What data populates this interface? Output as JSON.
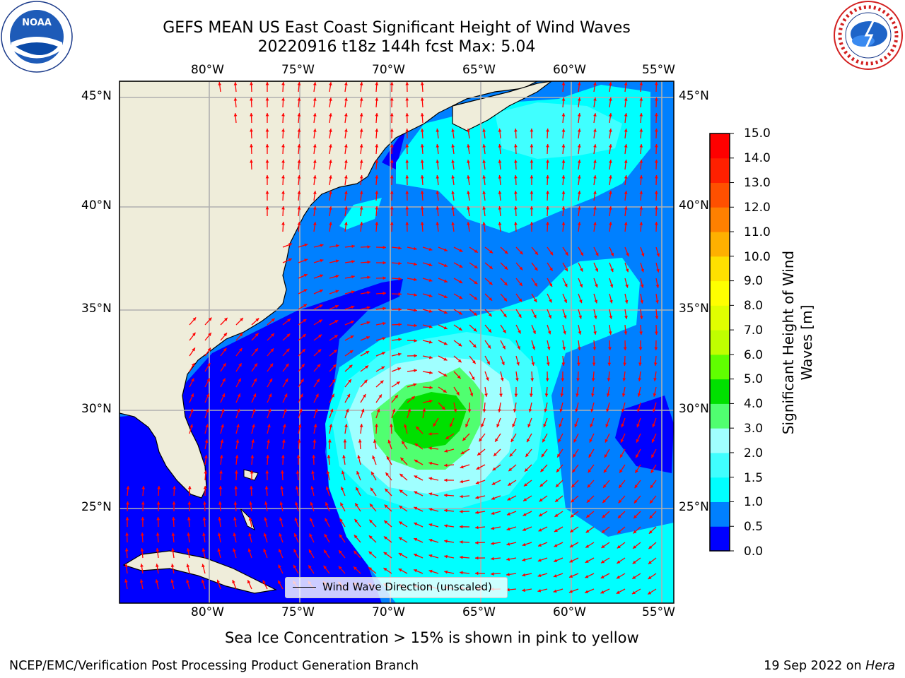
{
  "title_line1": "GEFS MEAN US East Coast Significant Height of Wind Waves",
  "title_line2": "20220916 t18z 144h fcst   Max: 5.04",
  "lon_labels": [
    "80°W",
    "75°W",
    "70°W",
    "65°W",
    "60°W",
    "55°W"
  ],
  "lat_labels": [
    "45°N",
    "40°N",
    "35°N",
    "30°N",
    "25°N"
  ],
  "colorbar": {
    "label": "Significant Height of Wind Waves [m]",
    "ticks": [
      "15.0",
      "14.0",
      "13.0",
      "12.0",
      "11.0",
      "10.0",
      "9.0",
      "8.0",
      "7.0",
      "6.0",
      "5.0",
      "4.0",
      "3.0",
      "2.0",
      "1.5",
      "1.0",
      "0.5",
      "0.0"
    ],
    "colors": [
      "#0000ff",
      "#0080ff",
      "#00ffff",
      "#40ffff",
      "#a0ffff",
      "#50ff70",
      "#00e000",
      "#60ff00",
      "#c0ff00",
      "#e0ff00",
      "#ffff00",
      "#ffe000",
      "#ffb000",
      "#ff8000",
      "#ff5000",
      "#ff2000",
      "#ff0000"
    ]
  },
  "legend_label": "Wind Wave Direction (unscaled)",
  "sea_ice_note": "Sea Ice Concentration > 15% is shown in pink to yellow",
  "footer_left": "NCEP/EMC/Verification Post Processing Product Generation Branch",
  "footer_date": "19 Sep 2022 on ",
  "footer_host": "Hera",
  "colors": {
    "land": "#efedda",
    "grid": "#b0b0b0",
    "arrow": "#ff0000"
  },
  "icons": [
    "noaa-logo",
    "nws-logo"
  ]
}
